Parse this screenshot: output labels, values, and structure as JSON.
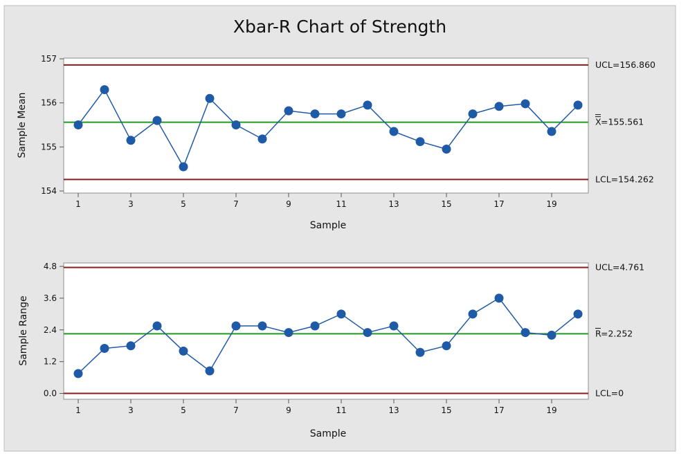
{
  "chart_data": [
    {
      "type": "line",
      "panel": "xbar",
      "title": "Xbar-R Chart of Strength",
      "xlabel": "Sample",
      "ylabel": "Sample Mean",
      "x": [
        1,
        2,
        3,
        4,
        5,
        6,
        7,
        8,
        9,
        10,
        11,
        12,
        13,
        14,
        15,
        16,
        17,
        18,
        19,
        20
      ],
      "values": [
        155.5,
        156.3,
        155.15,
        155.6,
        154.55,
        156.1,
        155.5,
        155.18,
        155.82,
        155.75,
        155.75,
        155.95,
        155.35,
        155.12,
        154.95,
        155.75,
        155.92,
        155.98,
        155.35,
        155.95
      ],
      "ylim": [
        154,
        157
      ],
      "yticks": [
        "154",
        "155",
        "156",
        "157"
      ],
      "xticks": [
        "1",
        "3",
        "5",
        "7",
        "9",
        "11",
        "13",
        "15",
        "17",
        "19"
      ],
      "limits": {
        "ucl": 156.86,
        "center": 155.561,
        "lcl": 154.262
      },
      "limit_labels": {
        "ucl": "UCL=156.860",
        "center_symbol": "X",
        "center_value": "=155.561",
        "lcl": "LCL=154.262"
      },
      "grid": false,
      "legend": "none"
    },
    {
      "type": "line",
      "panel": "range",
      "xlabel": "Sample",
      "ylabel": "Sample Range",
      "x": [
        1,
        2,
        3,
        4,
        5,
        6,
        7,
        8,
        9,
        10,
        11,
        12,
        13,
        14,
        15,
        16,
        17,
        18,
        19,
        20
      ],
      "values": [
        0.75,
        1.7,
        1.8,
        2.55,
        1.6,
        0.85,
        2.55,
        2.55,
        2.3,
        2.55,
        3.0,
        2.3,
        2.55,
        1.55,
        1.8,
        3.0,
        3.6,
        2.3,
        2.2,
        3.0
      ],
      "ylim": [
        -0.3,
        4.8
      ],
      "yticks": [
        "0.0",
        "1.2",
        "2.4",
        "3.6",
        "4.8"
      ],
      "xticks": [
        "1",
        "3",
        "5",
        "7",
        "9",
        "11",
        "13",
        "15",
        "17",
        "19"
      ],
      "limits": {
        "ucl": 4.761,
        "center": 2.252,
        "lcl": 0
      },
      "limit_labels": {
        "ucl": "UCL=4.761",
        "center_symbol": "R",
        "center_value": "=2.252",
        "lcl": "LCL=0"
      },
      "grid": false,
      "legend": "none"
    }
  ],
  "colors": {
    "outer_background": "#e6e6e6",
    "plot_background": "#ffffff",
    "control_limits": "#8b1a1a",
    "center_line": "#1f9b1f",
    "series": "#1f5aa6",
    "marker": "#1f5aa6"
  }
}
